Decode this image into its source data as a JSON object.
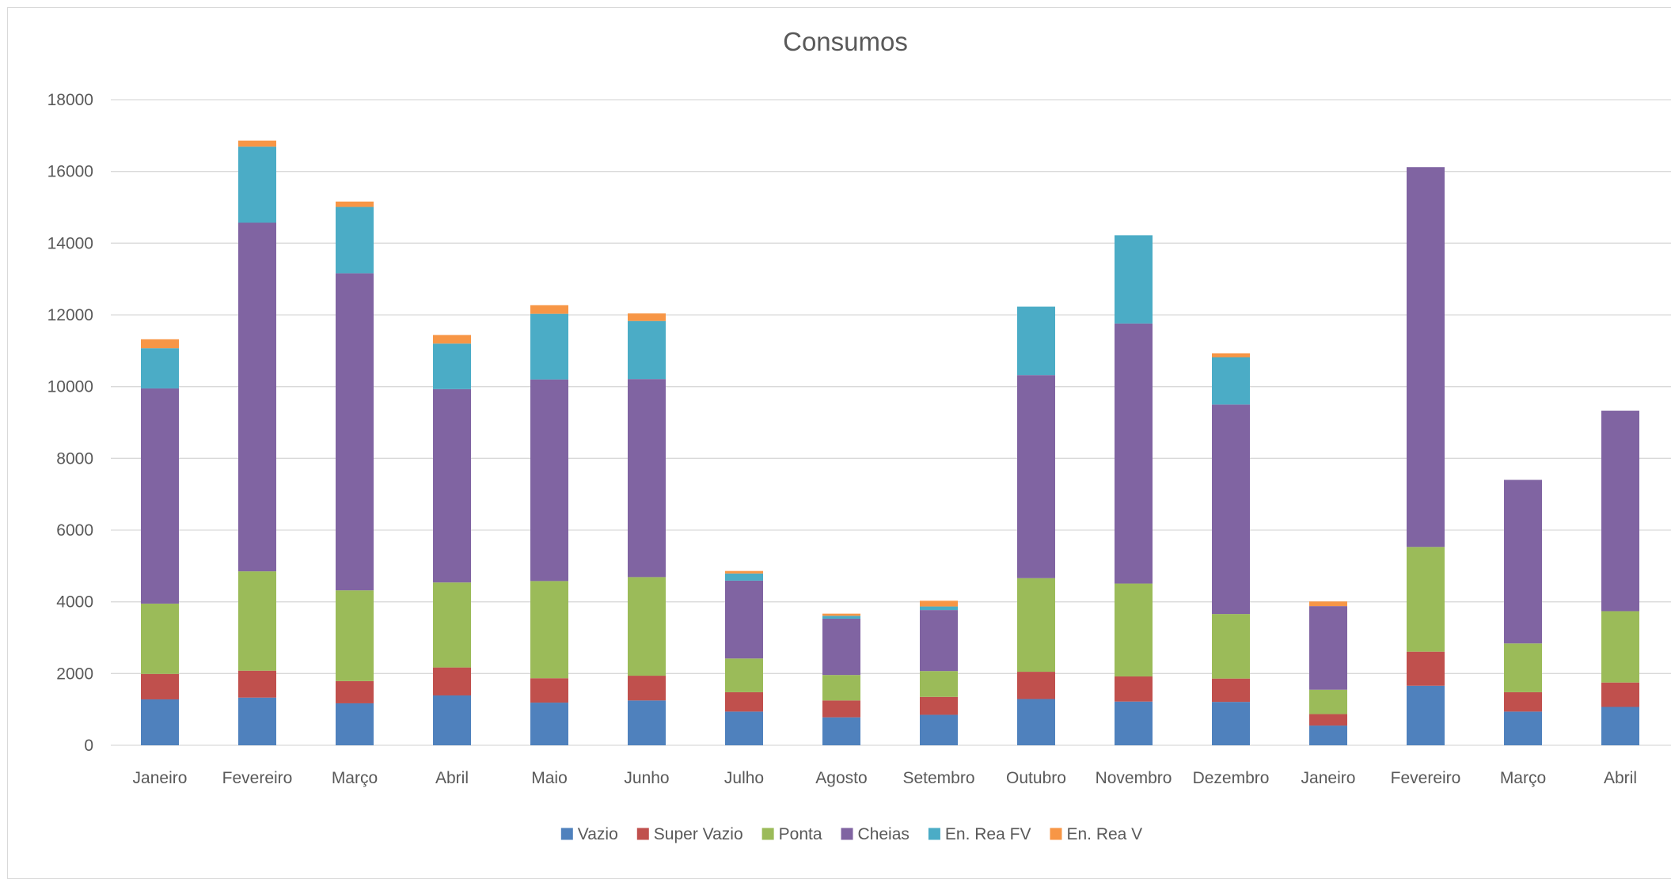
{
  "chart_data": {
    "type": "bar",
    "stacked": true,
    "title": "Consumos",
    "xlabel": "",
    "ylabel": "",
    "ylim": [
      0,
      18000
    ],
    "yticks": [
      "0",
      "2000",
      "4000",
      "6000",
      "8000",
      "10000",
      "12000",
      "14000",
      "16000",
      "18000"
    ],
    "grid": true,
    "legend_position": "bottom",
    "categories": [
      "Janeiro",
      "Fevereiro",
      "Março",
      "Abril",
      "Maio",
      "Junho",
      "Julho",
      "Agosto",
      "Setembro",
      "Outubro",
      "Novembro",
      "Dezembro",
      "Janeiro",
      "Fevereiro",
      "Março",
      "Abril"
    ],
    "series": [
      {
        "name": "Vazio",
        "color": "#4f81bd",
        "values": [
          1280,
          1330,
          1170,
          1390,
          1190,
          1250,
          940,
          780,
          850,
          1290,
          1220,
          1210,
          550,
          1660,
          940,
          1070
        ]
      },
      {
        "name": "Super Vazio",
        "color": "#c0504d",
        "values": [
          710,
          750,
          620,
          780,
          680,
          690,
          540,
          470,
          500,
          760,
          700,
          650,
          320,
          950,
          540,
          680
        ]
      },
      {
        "name": "Ponta",
        "color": "#9bbb59",
        "values": [
          1960,
          2770,
          2530,
          2370,
          2710,
          2750,
          940,
          710,
          720,
          2610,
          2590,
          1800,
          680,
          2920,
          1360,
          1990
        ]
      },
      {
        "name": "Cheias",
        "color": "#8064a2",
        "values": [
          6000,
          9720,
          8840,
          5390,
          5620,
          5520,
          2170,
          1570,
          1700,
          5660,
          7250,
          5840,
          2330,
          10590,
          4560,
          5590
        ]
      },
      {
        "name": "En. Rea FV",
        "color": "#4bacc6",
        "values": [
          1120,
          2120,
          1850,
          1270,
          1830,
          1620,
          200,
          80,
          100,
          1910,
          2460,
          1320,
          0,
          0,
          0,
          0
        ]
      },
      {
        "name": "En. Rea V",
        "color": "#f79646",
        "values": [
          250,
          170,
          150,
          240,
          240,
          210,
          70,
          60,
          160,
          0,
          0,
          110,
          130,
          0,
          0,
          0
        ]
      }
    ]
  }
}
